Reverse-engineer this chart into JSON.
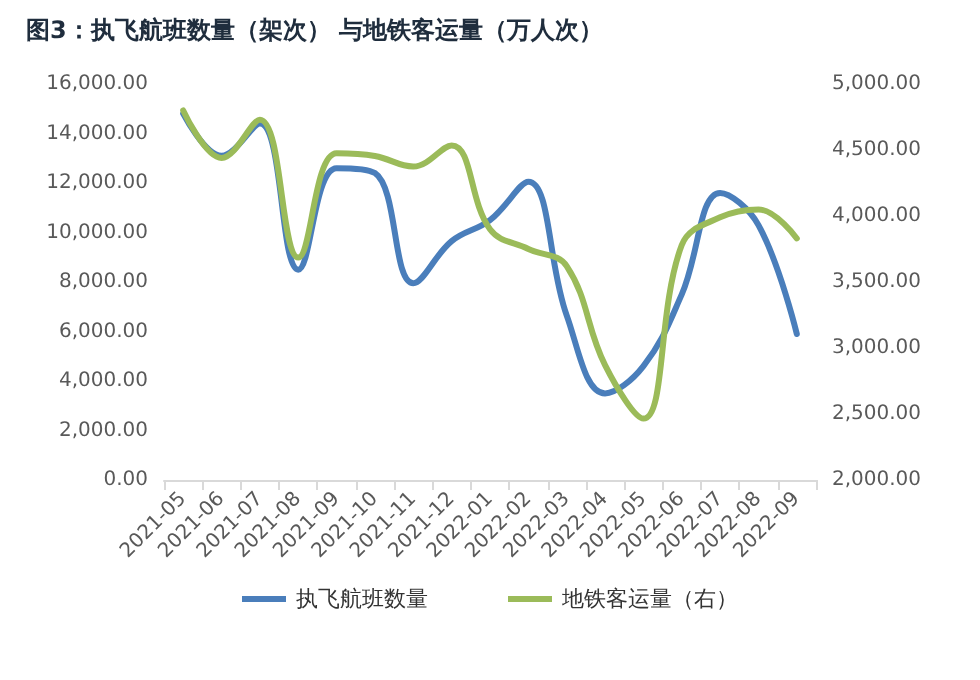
{
  "chart_data": {
    "type": "line",
    "title": "图3：执飞航班数量（架次） 与地铁客运量（万人次）",
    "categories": [
      "2021-05",
      "2021-06",
      "2021-07",
      "2021-08",
      "2021-09",
      "2021-10",
      "2021-11",
      "2021-12",
      "2022-01",
      "2022-02",
      "2022-03",
      "2022-04",
      "2022-05",
      "2022-06",
      "2022-07",
      "2022-08",
      "2022-09"
    ],
    "series": [
      {
        "name": "执飞航班数量",
        "color": "#4a7ebb",
        "values": [
          14800,
          13100,
          14400,
          8500,
          12600,
          12400,
          7950,
          9650,
          10500,
          12050,
          6650,
          3500,
          4600,
          7500,
          11600,
          10300,
          5900
        ]
      },
      {
        "name": "地铁客运量（右）",
        "color": "#9bbb59",
        "axis": "y2",
        "values": [
          4800,
          4440,
          4730,
          3685,
          4475,
          4455,
          4375,
          4535,
          3900,
          3750,
          3620,
          2870,
          2465,
          3780,
          3990,
          4050,
          3830
        ]
      }
    ],
    "ylim": [
      0,
      16000
    ],
    "yticks": [
      {
        "value": 0,
        "label": "0.00"
      },
      {
        "value": 2000,
        "label": "2,000.00"
      },
      {
        "value": 4000,
        "label": "4,000.00"
      },
      {
        "value": 6000,
        "label": "6,000.00"
      },
      {
        "value": 8000,
        "label": "8,000.00"
      },
      {
        "value": 10000,
        "label": "10,000.00"
      },
      {
        "value": 12000,
        "label": "12,000.00"
      },
      {
        "value": 14000,
        "label": "14,000.00"
      },
      {
        "value": 16000,
        "label": "16,000.00"
      }
    ],
    "y2lim": [
      2000,
      5000
    ],
    "y2ticks": [
      {
        "value": 2000,
        "label": "2,000.00"
      },
      {
        "value": 2500,
        "label": "2,500.00"
      },
      {
        "value": 3000,
        "label": "3,000.00"
      },
      {
        "value": 3500,
        "label": "3,500.00"
      },
      {
        "value": 4000,
        "label": "4,000.00"
      },
      {
        "value": 4500,
        "label": "4,500.00"
      },
      {
        "value": 5000,
        "label": "5,000.00"
      }
    ],
    "grid": false,
    "legend": "bottom",
    "marker": "none",
    "line_style": "solid"
  }
}
